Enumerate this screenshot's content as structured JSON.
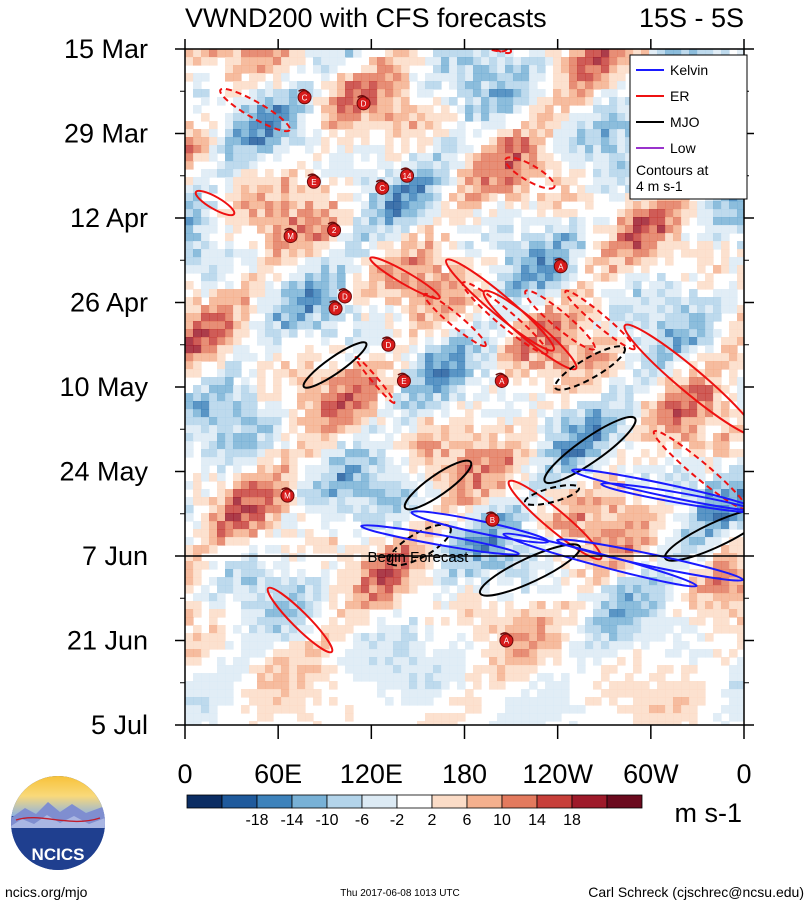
{
  "chart_data": {
    "type": "heatmap",
    "title": "VWND200 with CFS forecasts",
    "lat_band": "15S - 5S",
    "y_ticks": [
      "15 Mar",
      "29 Mar",
      "12 Apr",
      "26 Apr",
      "10 May",
      "24 May",
      "7 Jun",
      "21 Jun",
      "5 Jul"
    ],
    "y_range_days": [
      0,
      112
    ],
    "x_ticks": [
      "0",
      "60E",
      "120E",
      "180",
      "120W",
      "60W",
      "0"
    ],
    "x_range_lon": [
      0,
      360
    ],
    "begin_forecast_label": "Begin Forecast",
    "begin_forecast_day": 84,
    "colorbar": {
      "levels": [
        "-18",
        "-14",
        "-10",
        "-6",
        "-2",
        "2",
        "6",
        "10",
        "14",
        "18"
      ],
      "colors": [
        "#0b2d63",
        "#1f5a9c",
        "#3d82bb",
        "#78b1d6",
        "#b3d4ea",
        "#dceaf4",
        "#ffffff",
        "#fbdcc7",
        "#f4b08e",
        "#e37a5e",
        "#c73f3a",
        "#9e1a2a",
        "#6b0a1e"
      ],
      "unit": "m s-1"
    },
    "legend": [
      {
        "label": "Kelvin",
        "color": "#1a1aff"
      },
      {
        "label": "ER",
        "color": "#ee1111"
      },
      {
        "label": "MJO",
        "color": "#000000"
      },
      {
        "label": "Low",
        "color": "#9933cc"
      }
    ],
    "legend_note": [
      "Contours at",
      "4 m s-1"
    ],
    "storm_markers": [
      {
        "label": "C",
        "lon": 77,
        "day": 8
      },
      {
        "label": "D",
        "lon": 115,
        "day": 9
      },
      {
        "label": "E",
        "lon": 83,
        "day": 22
      },
      {
        "label": "C",
        "lon": 127,
        "day": 23
      },
      {
        "label": "14",
        "lon": 143,
        "day": 21
      },
      {
        "label": "M",
        "lon": 68,
        "day": 31
      },
      {
        "label": "2",
        "lon": 96,
        "day": 30
      },
      {
        "label": "A",
        "lon": 242,
        "day": 36
      },
      {
        "label": "D",
        "lon": 103,
        "day": 41
      },
      {
        "label": "P",
        "lon": 97,
        "day": 43
      },
      {
        "label": "D",
        "lon": 131,
        "day": 49
      },
      {
        "label": "E",
        "lon": 141,
        "day": 55
      },
      {
        "label": "A",
        "lon": 204,
        "day": 55
      },
      {
        "label": "M",
        "lon": 66,
        "day": 74
      },
      {
        "label": "B",
        "lon": 198,
        "day": 78
      },
      {
        "label": "A",
        "lon": 207,
        "day": 98
      }
    ]
  },
  "footer": {
    "logo_text": "NCICS",
    "left": "ncics.org/mjo",
    "center": "Thu 2017-06-08 1013 UTC",
    "right": "Carl Schreck (cjschrec@ncsu.edu)"
  }
}
